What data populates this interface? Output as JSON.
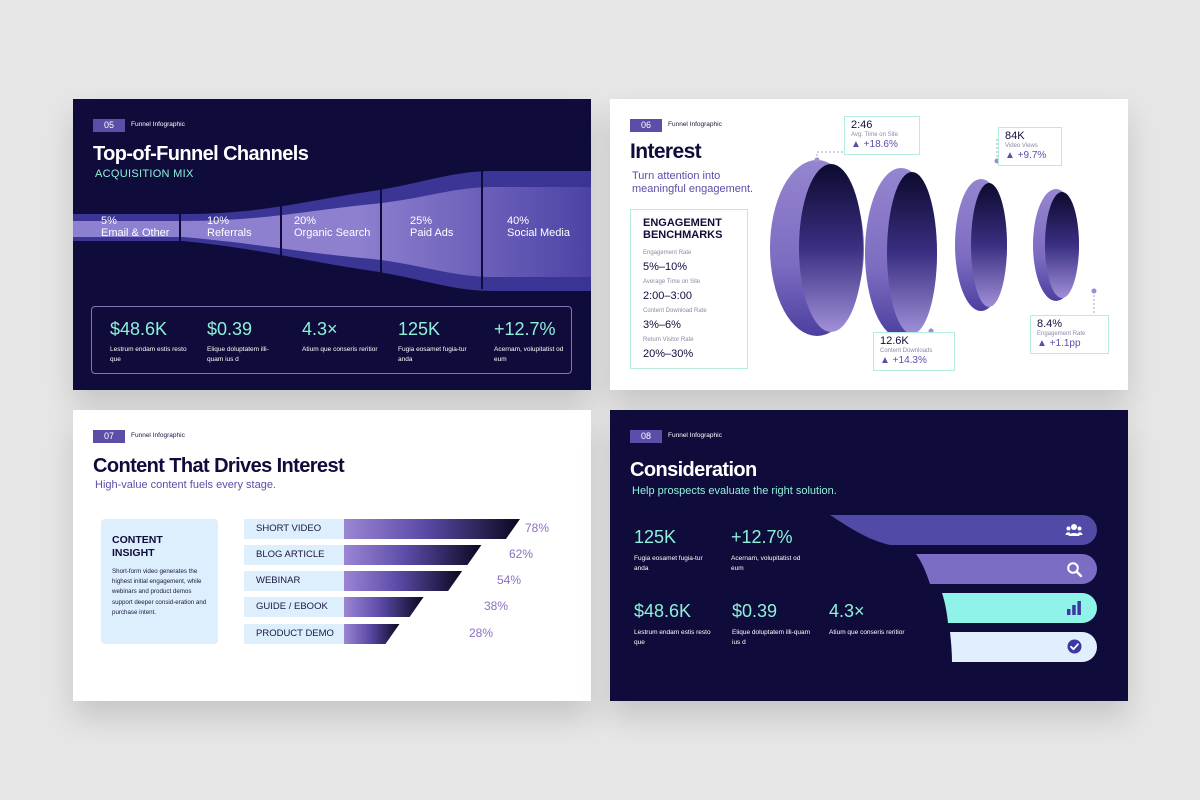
{
  "slides": [
    {
      "number": "05",
      "tag": "Funnel Infographic",
      "title": "Top-of-Funnel Channels",
      "subtitle": "ACQUISITION MIX",
      "segments": [
        {
          "pct": "5%",
          "label": "Email & Other"
        },
        {
          "pct": "10%",
          "label": "Referrals"
        },
        {
          "pct": "20%",
          "label": "Organic Search"
        },
        {
          "pct": "25%",
          "label": "Paid Ads"
        },
        {
          "pct": "40%",
          "label": "Social Media"
        }
      ],
      "stats": [
        {
          "value": "$48.6K",
          "desc": "Lestrum endam estis resto que"
        },
        {
          "value": "$0.39",
          "desc": "Elique doluptatem illi-quam ius d"
        },
        {
          "value": "4.3×",
          "desc": "Atium que conseris reritior"
        },
        {
          "value": "125K",
          "desc": "Fugia eosamet fugia-tur anda"
        },
        {
          "value": "+12.7%",
          "desc": "Acernam, volupitatist od eum"
        }
      ]
    },
    {
      "number": "06",
      "tag": "Funnel Infographic",
      "title": "Interest",
      "subtitle_line1": "Turn attention into",
      "subtitle_line2": "meaningful engagement.",
      "benchmarks_title_line1": "ENGAGEMENT",
      "benchmarks_title_line2": "BENCHMARKS",
      "benchmarks": [
        {
          "label": "Engagement Rate",
          "value": "5%–10%"
        },
        {
          "label": "Average Time on Site",
          "value": "2:00–3:00"
        },
        {
          "label": "Content Download Rate",
          "value": "3%–6%"
        },
        {
          "label": "Return Visitor Rate",
          "value": "20%–30%"
        }
      ],
      "callouts": [
        {
          "value": "2:46",
          "label": "Avg. Time on Site",
          "delta": "▲ +18.6%"
        },
        {
          "value": "12.6K",
          "label": "Content Downloads",
          "delta": "▲ +14.3%"
        },
        {
          "value": "84K",
          "label": "Video Views",
          "delta": "▲ +9.7%"
        },
        {
          "value": "8.4%",
          "label": "Engagement Rate",
          "delta": "▲ +1.1pp"
        }
      ]
    },
    {
      "number": "07",
      "tag": "Funnel Infographic",
      "title": "Content That Drives Interest",
      "subtitle": "High-value content fuels every stage.",
      "insight_title_line1": "CONTENT",
      "insight_title_line2": "INSIGHT",
      "insight_text": "Short-form video generates the highest initial engagement, while webinars and product demos support deeper consid-eration and purchase intent.",
      "bars": [
        {
          "label": "SHORT VIDEO",
          "pct": "78%",
          "value": 78
        },
        {
          "label": "BLOG ARTICLE",
          "pct": "62%",
          "value": 62
        },
        {
          "label": "WEBINAR",
          "pct": "54%",
          "value": 54
        },
        {
          "label": "GUIDE / EBOOK",
          "pct": "38%",
          "value": 38
        },
        {
          "label": "PRODUCT DEMO",
          "pct": "28%",
          "value": 28
        }
      ]
    },
    {
      "number": "08",
      "tag": "Funnel Infographic",
      "title": "Consideration",
      "subtitle": "Help prospects evaluate the right solution.",
      "stats": [
        {
          "value": "125K",
          "desc": "Fugia eosamet fugia-tur anda"
        },
        {
          "value": "+12.7%",
          "desc": "Acernam, volupitatist od eum"
        },
        {
          "value": "$48.6K",
          "desc": "Lestrum endam estis resto que"
        },
        {
          "value": "$0.39",
          "desc": "Elique doluptatem illi-quam ius d"
        },
        {
          "value": "4.3×",
          "desc": "Atium que conseris reritior"
        }
      ],
      "funnel_icons": [
        "users-icon",
        "search-icon",
        "bar-chart-icon",
        "check-circle-icon"
      ]
    }
  ],
  "colors": {
    "navy": "#0f0c3b",
    "purple": "#5b4ea8",
    "lavender": "#9b8dd6",
    "mint": "#8ef0d9",
    "light_blue": "#ddeefd"
  }
}
